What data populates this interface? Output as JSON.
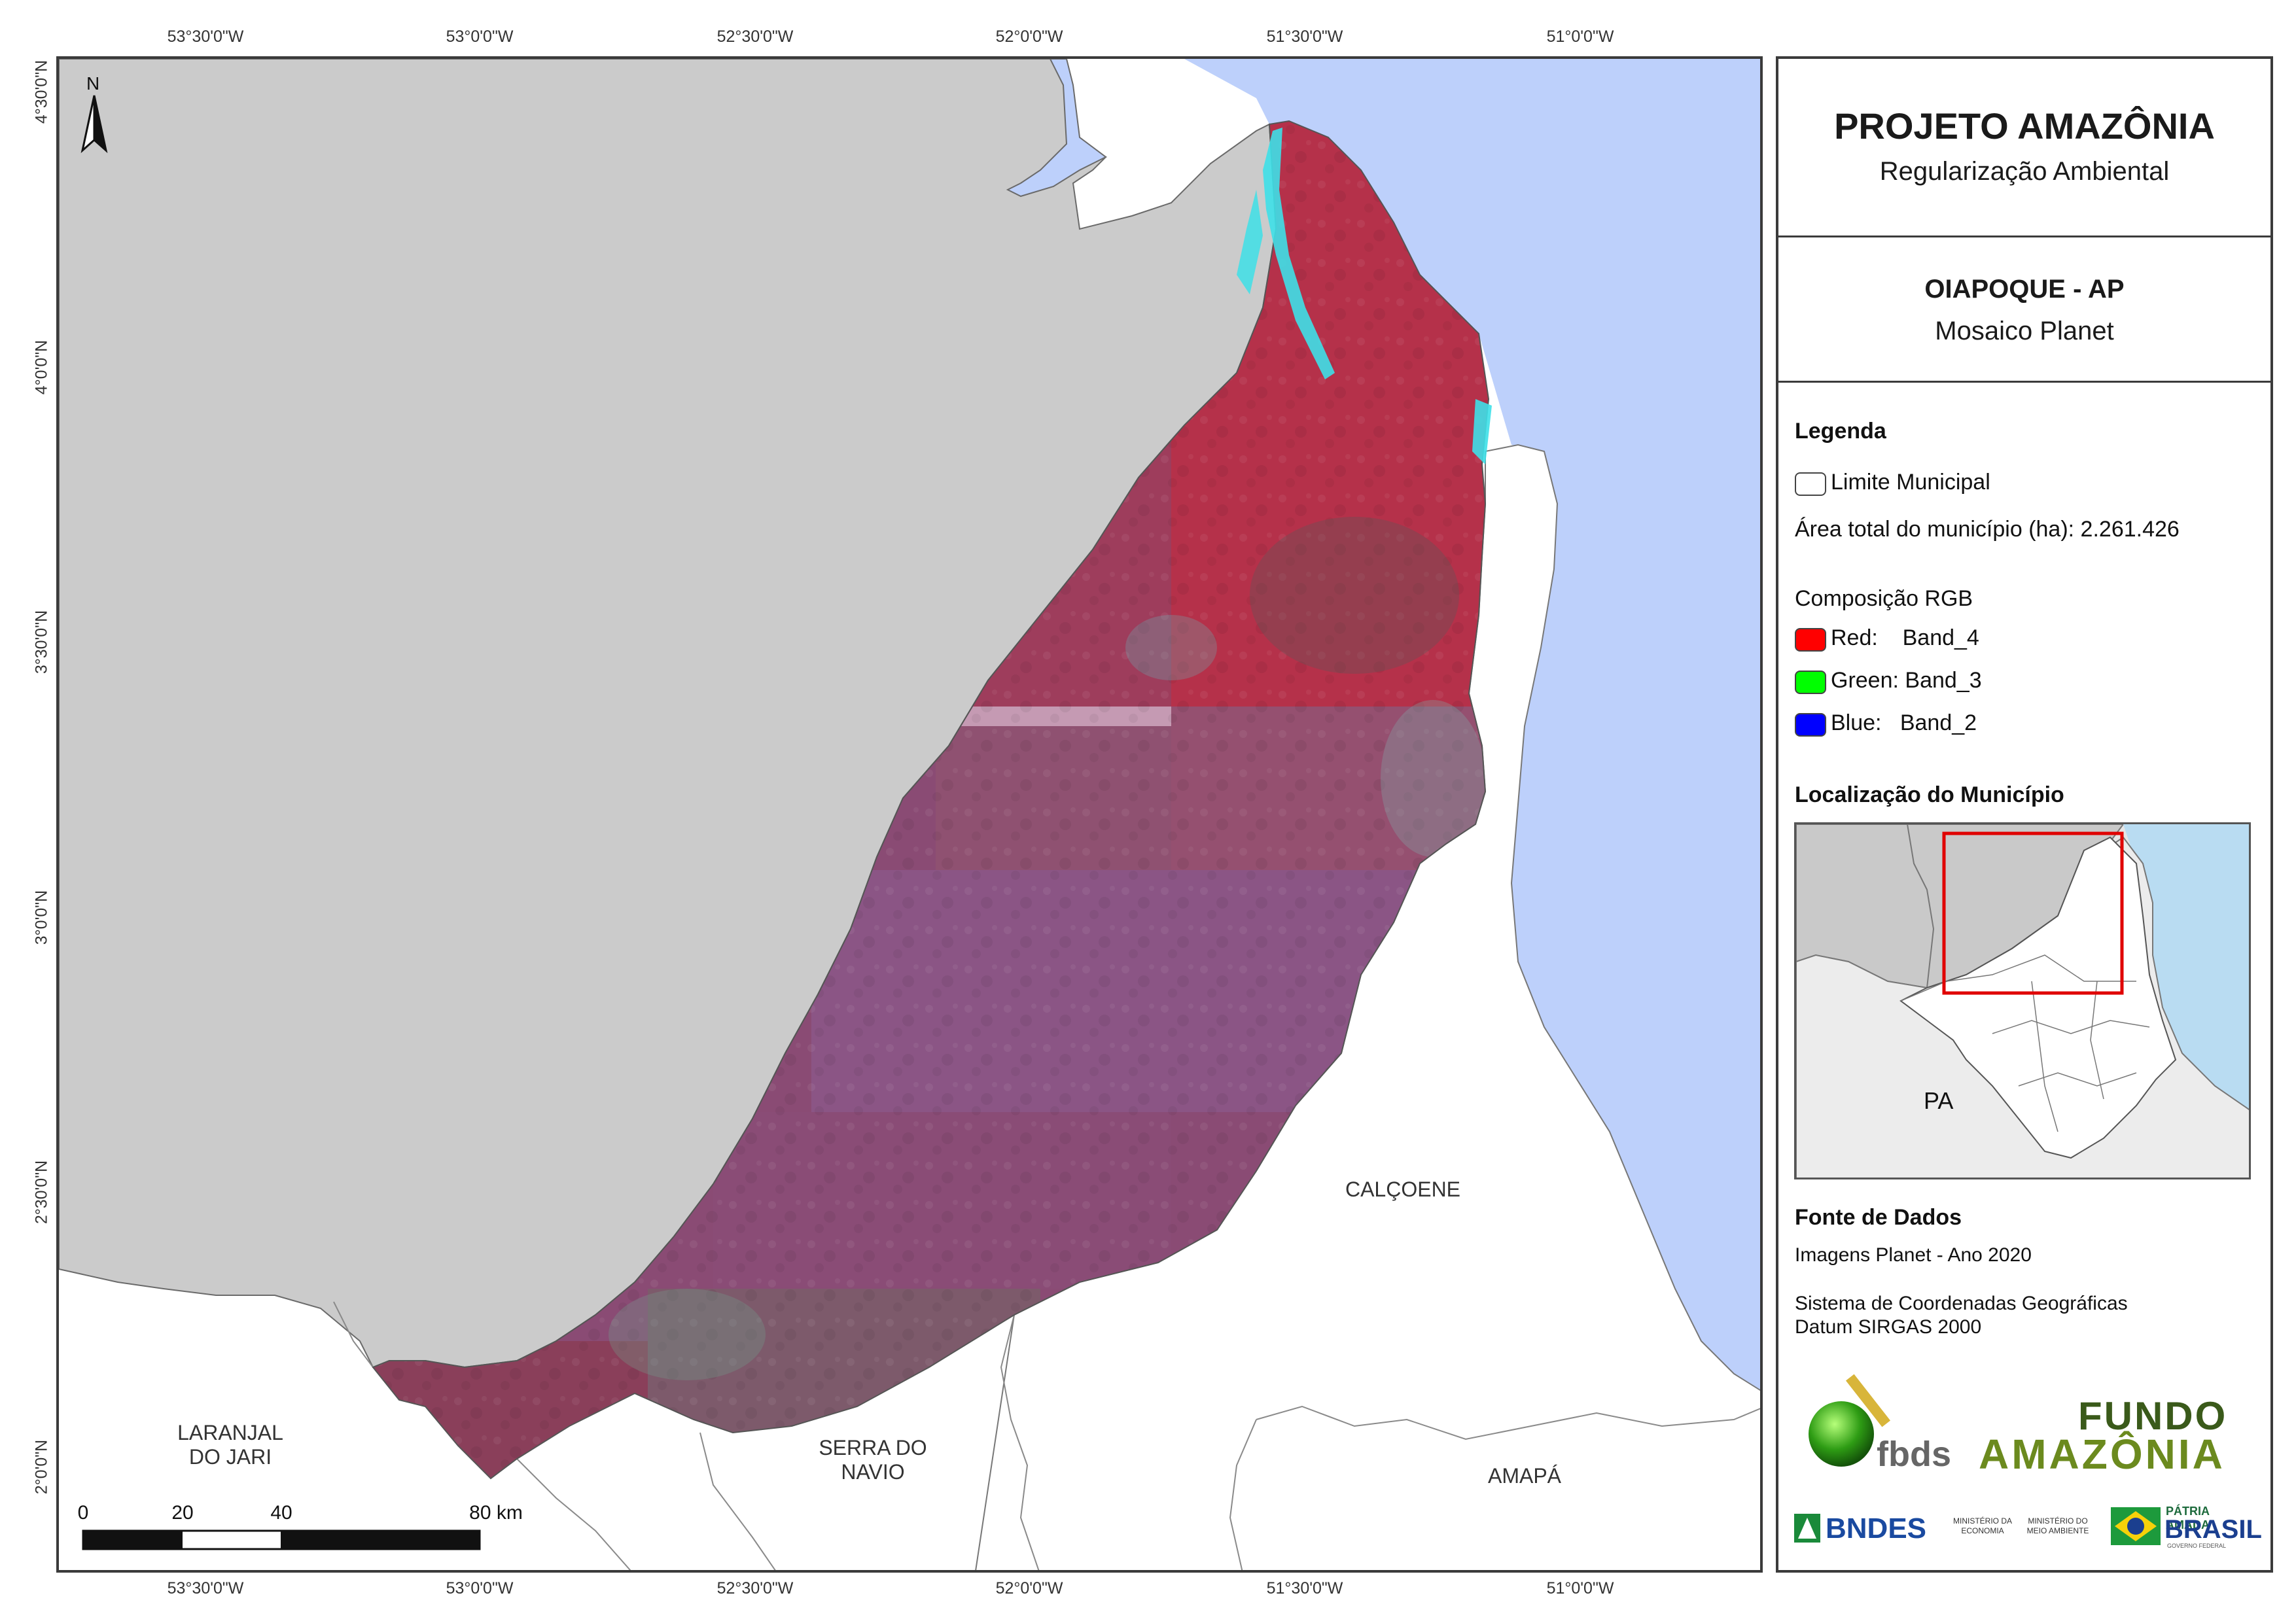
{
  "layout_frame": {
    "top_ticks": [
      "53°30'0\"W",
      "53°0'0\"W",
      "52°30'0\"W",
      "52°0'0\"W",
      "51°30'0\"W",
      "51°0'0\"W"
    ],
    "bottom_ticks": [
      "53°30'0\"W",
      "53°0'0\"W",
      "52°30'0\"W",
      "52°0'0\"W",
      "51°30'0\"W",
      "51°0'0\"W"
    ],
    "left_ticks": [
      "4°30'0\"N",
      "4°0'0\"N",
      "3°30'0\"N",
      "3°0'0\"N",
      "2°30'0\"N",
      "2°0'0\"N"
    ]
  },
  "map": {
    "north_label": "N",
    "places": {
      "laranjal": "LARANJAL\nDO JARI",
      "serra": "SERRA DO\nNAVIO",
      "calcoene": "CALÇOENE",
      "amapa": "AMAPÁ"
    },
    "colors": {
      "ocean": "#bdd0fb",
      "outside": "#cbcbcb",
      "land": "#ffffff",
      "imagery_red": "#b3344a",
      "imagery_purple": "#8e4a72",
      "water_cyan": "#3ee0e8"
    },
    "scale": {
      "labels": [
        "0",
        "20",
        "40",
        "80 km"
      ]
    }
  },
  "panel": {
    "title": "PROJETO AMAZÔNIA",
    "subtitle": "Regularização Ambiental",
    "municipality": "OIAPOQUE - AP",
    "product": "Mosaico Planet",
    "legend": {
      "heading": "Legenda",
      "boundary": "Limite Municipal",
      "area": "Área total do município (ha): 2.261.426",
      "rgb_heading": "Composição RGB",
      "red": "Red:    Band_4",
      "green": "Green: Band_3",
      "blue": "Blue:   Band_2",
      "swatch_colors": {
        "red": "#ff0000",
        "green": "#00ff00",
        "blue": "#0000ff"
      }
    },
    "location": {
      "heading": "Localização do Município",
      "pa_label": "PA"
    },
    "sources": {
      "heading": "Fonte de Dados",
      "line1": "Imagens Planet - Ano 2020",
      "line2": "Sistema de Coordenadas Geográficas",
      "line3": "Datum SIRGAS 2000"
    },
    "logos": {
      "fbds": "fbds",
      "fundo_line1": "FUNDO",
      "fundo_line2": "AMAZÔNIA",
      "bndes": "BNDES",
      "min_economia": "MINISTÉRIO DA\nECONOMIA",
      "min_meio": "MINISTÉRIO DO\nMEIO AMBIENTE",
      "patria": "PÁTRIA AMADA",
      "brasil": "BRASIL",
      "gov": "GOVERNO FEDERAL"
    }
  }
}
